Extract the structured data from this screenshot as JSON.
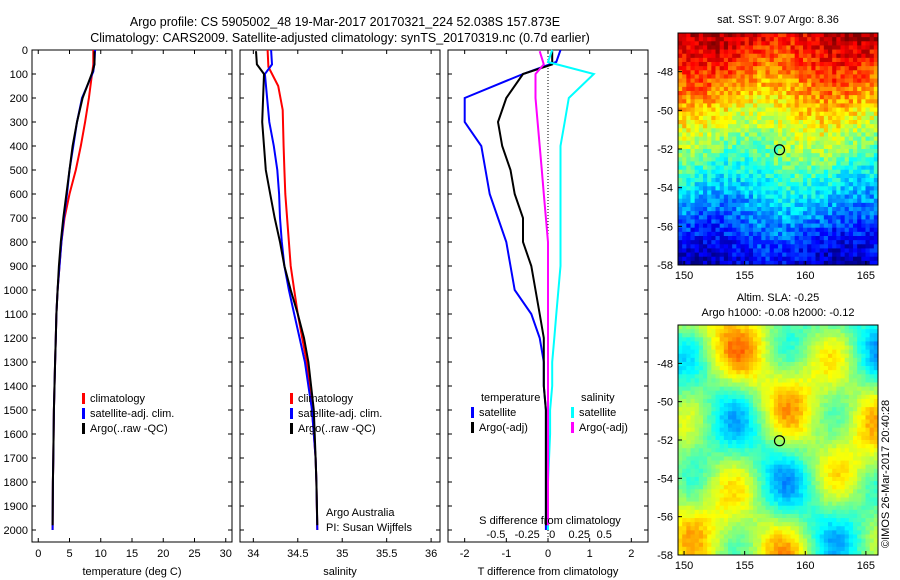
{
  "header": {
    "line1": "Argo profile: CS 5905002_48 19-Mar-2017 20170321_224 52.038S 157.873E",
    "line2": "Climatology: CARS2009. Satellite-adjusted climatology: synTS_20170319.nc (0.7d earlier)"
  },
  "colors": {
    "climatology": "#ff0000",
    "satellite": "#0000ff",
    "argo": "#000000",
    "salinity_sat": "#00ffff",
    "salinity_argo": "#ff00ff"
  },
  "footer": {
    "argo_australia": "Argo Australia",
    "pi": "PI: Susan Wijffels",
    "credit": "©IMOS 26-Mar-2017 20:40:28"
  },
  "chart_data": [
    {
      "type": "line",
      "id": "temperature",
      "xlabel": "temperature (deg C)",
      "ylabel": "",
      "xlim": [
        -1,
        31
      ],
      "ylim": [
        2050,
        0
      ],
      "xticks": [
        0,
        5,
        10,
        15,
        20,
        25,
        30
      ],
      "yticks": [
        0,
        100,
        200,
        300,
        400,
        500,
        600,
        700,
        800,
        900,
        1000,
        1100,
        1200,
        1300,
        1400,
        1500,
        1600,
        1700,
        1800,
        1900,
        2000
      ],
      "legend": [
        "climatology",
        "satellite-adj. clim.",
        "Argo(..raw -QC)"
      ],
      "series": [
        {
          "name": "climatology",
          "x": [
            8.8,
            8.8,
            8.6,
            8.1,
            7.5,
            6.8,
            6.0,
            5.0,
            4.2,
            3.7,
            3.4,
            3.1,
            2.9,
            2.8,
            2.7,
            2.6,
            2.5,
            2.45,
            2.4,
            2.35,
            2.3
          ],
          "depth": [
            0,
            60,
            100,
            200,
            300,
            400,
            500,
            600,
            700,
            800,
            900,
            1000,
            1100,
            1200,
            1300,
            1400,
            1500,
            1600,
            1700,
            1800,
            2000
          ]
        },
        {
          "name": "satellite-adj. clim.",
          "x": [
            9.1,
            9.0,
            8.8,
            7.0,
            6.2,
            5.6,
            5.0,
            4.6,
            4.1,
            3.7,
            3.4,
            3.1,
            2.9,
            2.8,
            2.7,
            2.6,
            2.5,
            2.45,
            2.4,
            2.35,
            2.3
          ],
          "depth": [
            0,
            50,
            90,
            200,
            300,
            400,
            500,
            600,
            700,
            800,
            900,
            1000,
            1100,
            1200,
            1300,
            1400,
            1500,
            1600,
            1700,
            1800,
            2000
          ]
        },
        {
          "name": "Argo(..raw -QC)",
          "x": [
            9.0,
            9.0,
            8.7,
            7.1,
            6.2,
            5.5,
            5.0,
            4.5,
            4.0,
            3.6,
            3.3,
            3.1,
            2.9,
            2.8,
            2.7,
            2.6,
            2.5,
            2.45,
            2.4,
            2.35,
            2.3
          ],
          "depth": [
            5,
            60,
            90,
            200,
            300,
            400,
            500,
            600,
            700,
            800,
            900,
            1000,
            1100,
            1200,
            1300,
            1400,
            1500,
            1600,
            1700,
            1800,
            1980
          ]
        }
      ]
    },
    {
      "type": "line",
      "id": "salinity",
      "xlabel": "salinity",
      "xlim": [
        33.85,
        36.1
      ],
      "ylim": [
        2050,
        0
      ],
      "xticks": [
        34,
        34.5,
        35,
        35.5,
        36
      ],
      "legend": [
        "climatology",
        "satellite-adj. clim.",
        "Argo(..raw -QC)"
      ],
      "series": [
        {
          "name": "climatology",
          "x": [
            34.16,
            34.17,
            34.28,
            34.33,
            34.34,
            34.35,
            34.36,
            34.38,
            34.4,
            34.42,
            34.46,
            34.5,
            34.55,
            34.6,
            34.63,
            34.66,
            34.68,
            34.7,
            34.71,
            34.72
          ],
          "depth": [
            0,
            70,
            150,
            250,
            400,
            500,
            600,
            700,
            800,
            900,
            1000,
            1100,
            1200,
            1300,
            1400,
            1500,
            1600,
            1700,
            1800,
            2000
          ]
        },
        {
          "name": "satellite-adj. clim.",
          "x": [
            34.2,
            34.21,
            34.13,
            34.18,
            34.23,
            34.27,
            34.29,
            34.3,
            34.32,
            34.35,
            34.4,
            34.46,
            34.52,
            34.58,
            34.62,
            34.66,
            34.68,
            34.7,
            34.71,
            34.72
          ],
          "depth": [
            0,
            60,
            100,
            300,
            400,
            500,
            600,
            700,
            800,
            900,
            1000,
            1100,
            1200,
            1300,
            1400,
            1500,
            1600,
            1700,
            1800,
            2000
          ]
        },
        {
          "name": "Argo(..raw -QC)",
          "x": [
            34.03,
            34.04,
            34.12,
            34.1,
            34.12,
            34.14,
            34.19,
            34.24,
            34.3,
            34.35,
            34.42,
            34.5,
            34.57,
            34.62,
            34.65,
            34.68,
            34.69,
            34.7,
            34.71,
            34.72
          ],
          "depth": [
            5,
            60,
            100,
            300,
            400,
            500,
            600,
            700,
            800,
            900,
            1000,
            1100,
            1200,
            1300,
            1400,
            1500,
            1600,
            1700,
            1800,
            1980
          ]
        }
      ]
    },
    {
      "type": "line",
      "id": "differences",
      "xlabel": "T difference from climatology",
      "xlabel_top": "S difference from climatology",
      "xlim": [
        -2.4,
        2.4
      ],
      "ylim": [
        2050,
        0
      ],
      "xticks": [
        -2,
        -1,
        0,
        1,
        2
      ],
      "s_ticks": [
        "-0.5",
        "-0.25",
        "0",
        "0.25",
        "0.5"
      ],
      "legend_temperature": [
        "temperature",
        "satellite",
        "Argo(-adj)"
      ],
      "legend_salinity": [
        "salinity",
        "satellite",
        "Argo(-adj)"
      ],
      "series": [
        {
          "name": "satellite",
          "group": "temperature",
          "x": [
            0.3,
            0.2,
            -0.6,
            -2.0,
            -2.0,
            -1.6,
            -1.5,
            -1.4,
            -1.2,
            -1.0,
            -0.9,
            -0.8,
            -0.4,
            -0.2,
            -0.1,
            -0.1,
            -0.05,
            -0.05,
            -0.05,
            -0.05
          ],
          "depth": [
            0,
            50,
            100,
            200,
            300,
            400,
            500,
            600,
            700,
            800,
            900,
            1000,
            1100,
            1200,
            1300,
            1400,
            1500,
            1600,
            1800,
            2000
          ]
        },
        {
          "name": "Argo(-adj)",
          "group": "temperature",
          "x": [
            0.1,
            0.1,
            -0.6,
            -1.0,
            -1.2,
            -1.1,
            -0.9,
            -0.8,
            -0.6,
            -0.6,
            -0.4,
            -0.3,
            -0.2,
            -0.1,
            -0.1,
            -0.1,
            -0.05,
            -0.05,
            -0.05,
            -0.05
          ],
          "depth": [
            5,
            60,
            100,
            200,
            300,
            400,
            500,
            600,
            700,
            800,
            900,
            1000,
            1100,
            1200,
            1300,
            1400,
            1500,
            1600,
            1800,
            1980
          ]
        },
        {
          "name": "satellite",
          "group": "salinity",
          "x": [
            0.1,
            0.0,
            1.1,
            0.5,
            0.4,
            0.3,
            0.3,
            0.3,
            0.3,
            0.3,
            0.3,
            0.25,
            0.2,
            0.15,
            0.1,
            0.1,
            0.05,
            0.05,
            0.0,
            0.0
          ],
          "depth": [
            0,
            50,
            100,
            200,
            300,
            400,
            500,
            600,
            700,
            800,
            900,
            1000,
            1100,
            1200,
            1300,
            1400,
            1500,
            1600,
            1800,
            2000
          ]
        },
        {
          "name": "Argo(-adj)",
          "group": "salinity",
          "x": [
            -0.2,
            -0.1,
            -0.3,
            -0.3,
            -0.25,
            -0.2,
            -0.15,
            -0.1,
            -0.05,
            0.0,
            0.0,
            0.0,
            0.0,
            0.0,
            0.0,
            0.0,
            0.0,
            0.0,
            0.0,
            0.0
          ],
          "depth": [
            5,
            60,
            100,
            200,
            300,
            400,
            500,
            600,
            700,
            800,
            900,
            1000,
            1100,
            1200,
            1300,
            1400,
            1500,
            1600,
            1800,
            1980
          ]
        }
      ]
    },
    {
      "type": "heatmap",
      "id": "sst-map",
      "title": "sat. SST: 9.07  Argo: 8.36",
      "xlim": [
        149.5,
        166
      ],
      "ylim": [
        -58,
        -46
      ],
      "xticks": [
        150,
        155,
        160,
        165
      ],
      "yticks": [
        -48,
        -50,
        -52,
        -54,
        -56,
        -58
      ],
      "marker": {
        "lon": 157.873,
        "lat": -52.038
      }
    },
    {
      "type": "heatmap",
      "id": "sla-map",
      "title": "Altim. SLA: -0.25",
      "subtitle": "Argo h1000: -0.08 h2000: -0.12",
      "xlim": [
        149.5,
        166
      ],
      "ylim": [
        -58,
        -46
      ],
      "xticks": [
        150,
        155,
        160,
        165
      ],
      "yticks": [
        -48,
        -50,
        -52,
        -54,
        -56,
        -58
      ],
      "marker": {
        "lon": 157.873,
        "lat": -52.038
      }
    }
  ]
}
